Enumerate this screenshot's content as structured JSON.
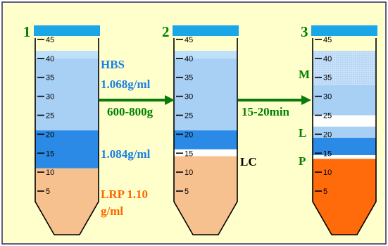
{
  "colors": {
    "background": "#ffffcc",
    "cap": "#1aa7e8",
    "plasma": "#bfe0fb",
    "hbs_layer": "#a8d0f5",
    "density_1084": "#2a8ae6",
    "lrp": "#f7c08f",
    "pellet": "#ff6a0a",
    "layer_white": "#ffffff",
    "label_blue": "#1a7fe6",
    "label_orange": "#ff6600",
    "label_green": "#008000",
    "label_black": "#000000",
    "arrow": "#0a7a0a"
  },
  "tube_ticks": [
    "45",
    "40",
    "35",
    "30",
    "25",
    "20",
    "15",
    "10",
    "5"
  ],
  "tubes": [
    {
      "number": "1",
      "layers": [
        {
          "name": "plasma-layer",
          "top_ml": 42,
          "bottom_ml": 40,
          "color": "plasma"
        },
        {
          "name": "hbs-layer",
          "top_ml": 40,
          "bottom_ml": 21,
          "color": "hbs_layer"
        },
        {
          "name": "density-1084-layer",
          "top_ml": 21,
          "bottom_ml": 11,
          "color": "density_1084"
        },
        {
          "name": "lrp-layer",
          "top_ml": 11,
          "bottom_ml": 0,
          "color": "lrp"
        }
      ]
    },
    {
      "number": "2",
      "layers": [
        {
          "name": "plasma-layer",
          "top_ml": 42,
          "bottom_ml": 40,
          "color": "plasma"
        },
        {
          "name": "hbs-layer",
          "top_ml": 40,
          "bottom_ml": 21,
          "color": "hbs_layer"
        },
        {
          "name": "density-1084-layer",
          "top_ml": 21,
          "bottom_ml": 16,
          "color": "density_1084"
        },
        {
          "name": "lc-band",
          "top_ml": 16,
          "bottom_ml": 14.2,
          "color": "layer_white"
        },
        {
          "name": "lrp-layer",
          "top_ml": 14.2,
          "bottom_ml": 0,
          "color": "lrp"
        }
      ]
    },
    {
      "number": "3",
      "layers": [
        {
          "name": "m-layer",
          "top_ml": 42,
          "bottom_ml": 33,
          "color": "plasma",
          "dotted": true
        },
        {
          "name": "upper-fraction-layer",
          "top_ml": 33,
          "bottom_ml": 25,
          "color": "hbs_layer"
        },
        {
          "name": "l-band",
          "top_ml": 25,
          "bottom_ml": 22,
          "color": "layer_white"
        },
        {
          "name": "hbs-lower-layer",
          "top_ml": 22,
          "bottom_ml": 19,
          "color": "hbs_layer"
        },
        {
          "name": "density-1084-layer",
          "top_ml": 19,
          "bottom_ml": 14.5,
          "color": "density_1084"
        },
        {
          "name": "p-band",
          "top_ml": 14.5,
          "bottom_ml": 13.5,
          "color": "layer_white"
        },
        {
          "name": "pellet-layer",
          "top_ml": 13.5,
          "bottom_ml": 0,
          "color": "pellet"
        }
      ]
    }
  ],
  "labels": {
    "hbs": "HBS",
    "hbs_density": "1.068g/ml",
    "density_1084": "1.084g/ml",
    "lrp_line1": "LRP 1.10",
    "lrp_line2": "g/ml",
    "centrifuge_force": "600-800g",
    "centrifuge_time": "15-20min",
    "lc": "LC",
    "m": "M",
    "l": "L",
    "p": "P"
  }
}
